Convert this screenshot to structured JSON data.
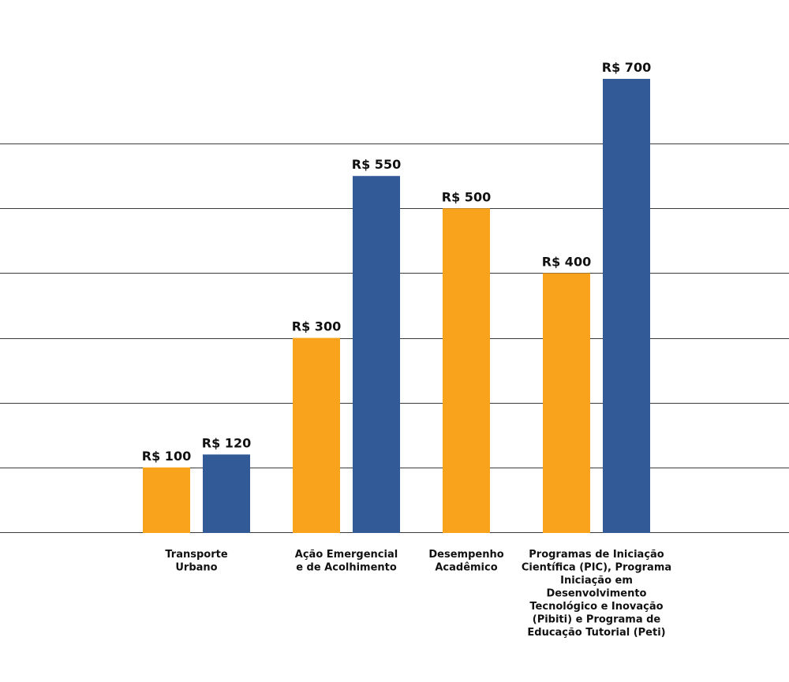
{
  "chart_data": {
    "type": "bar",
    "title": "",
    "xlabel": "",
    "ylabel": "",
    "ylim": [
      0,
      700
    ],
    "grid": true,
    "categories": [
      "Transporte Urbano",
      "Ação Emergencial e de Acolhimento",
      "Desempenho Acadêmico",
      "Programas de Iniciação Científica (PIC), Programa Iniciação em Desenvolvimento Tecnológico e Inovação (Pibiti) e Programa de Educação Tutorial (Peti)"
    ],
    "category_label_lines": [
      [
        "Transporte",
        "Urbano"
      ],
      [
        "Ação Emergencial",
        "e de Acolhimento"
      ],
      [
        "Desempenho",
        "Acadêmico"
      ],
      [
        "Programas de Iniciação",
        "Científica (PIC), Programa",
        "Iniciação em",
        "Desenvolvimento",
        "Tecnológico e Inovação",
        "(Pibiti) e Programa de",
        "Educação Tutorial (Peti)"
      ]
    ],
    "series": [
      {
        "color": "#F9A31C",
        "values": [
          100,
          300,
          500,
          400
        ],
        "labels": [
          "R$ 100",
          "R$ 300",
          "R$ 500",
          "R$ 400"
        ]
      },
      {
        "color": "#325A97",
        "values": [
          120,
          550,
          null,
          700
        ],
        "labels": [
          "R$ 120",
          "R$ 550",
          "",
          "R$ 700"
        ]
      }
    ],
    "gridline_values": [
      0,
      100,
      200,
      300,
      400,
      500,
      600
    ]
  }
}
